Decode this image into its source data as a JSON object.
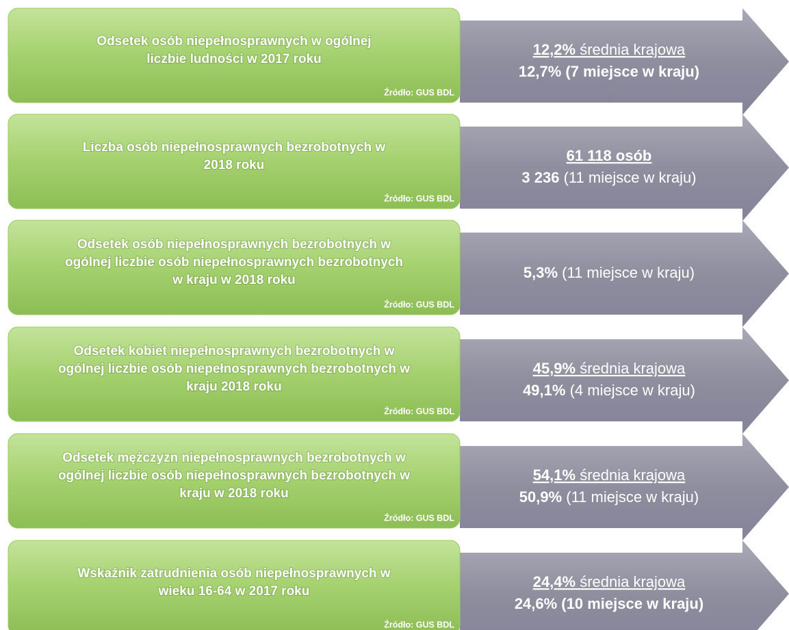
{
  "rows": [
    {
      "title_lines": [
        "Odsetek osób niepełnosprawnych w ogólnej",
        "liczbie ludności w 2017 roku"
      ],
      "source": "Źródło: GUS BDL",
      "value_lines": [
        [
          {
            "text": "12,2%",
            "style": "bold underline"
          },
          {
            "text": " średnia krajowa",
            "style": "underline"
          }
        ],
        [
          {
            "text": "12,7% (7 miejsce w kraju)",
            "style": "bold"
          }
        ]
      ]
    },
    {
      "title_lines": [
        "Liczba osób niepełnosprawnych bezrobotnych w",
        "2018 roku"
      ],
      "source": "Źródło: GUS BDL",
      "value_lines": [
        [
          {
            "text": "61 118 osób",
            "style": "bold underline"
          }
        ],
        [
          {
            "text": "3 236",
            "style": "bold"
          },
          {
            "text": " (11 miejsce w kraju)",
            "style": "normal"
          }
        ]
      ]
    },
    {
      "title_lines": [
        "Odsetek osób niepełnosprawnych bezrobotnych w",
        "ogólnej liczbie osób niepełnosprawnych bezrobotnych",
        "w kraju w 2018 roku"
      ],
      "source": "Źródło: GUS BDL",
      "value_lines": [
        [
          {
            "text": "5,3%",
            "style": "bold"
          },
          {
            "text": " (11 miejsce w kraju)",
            "style": "normal"
          }
        ]
      ]
    },
    {
      "title_lines": [
        "Odsetek kobiet niepełnosprawnych bezrobotnych w",
        "ogólnej liczbie osób niepełnosprawnych bezrobotnych w",
        "kraju 2018 roku"
      ],
      "source": "Źródło: GUS BDL",
      "value_lines": [
        [
          {
            "text": "45,9%",
            "style": "bold underline"
          },
          {
            "text": " średnia krajowa",
            "style": "underline"
          }
        ],
        [
          {
            "text": "49,1%",
            "style": "bold"
          },
          {
            "text": " (4 miejsce w kraju)",
            "style": "normal"
          }
        ]
      ]
    },
    {
      "title_lines": [
        "Odsetek mężczyzn niepełnosprawnych bezrobotnych w",
        "ogólnej liczbie osób niepełnosprawnych bezrobotnych w",
        "kraju w 2018 roku"
      ],
      "source": "Źródło: GUS BDL",
      "value_lines": [
        [
          {
            "text": "54,1%",
            "style": "bold underline"
          },
          {
            "text": " średnia krajowa",
            "style": "underline"
          }
        ],
        [
          {
            "text": "50,9%",
            "style": "bold"
          },
          {
            "text": " (11 miejsce w kraju)",
            "style": "normal"
          }
        ]
      ]
    },
    {
      "title_lines": [
        "Wskaźnik zatrudnienia osób niepełnosprawnych w",
        "wieku 16-64 w 2017 roku"
      ],
      "source": "Źródło: GUS BDL",
      "value_lines": [
        [
          {
            "text": "24,4%",
            "style": "bold underline"
          },
          {
            "text": " średnia krajowa",
            "style": "underline"
          }
        ],
        [
          {
            "text": "24,6% (10 miejsce w kraju)",
            "style": "bold"
          }
        ]
      ]
    }
  ]
}
